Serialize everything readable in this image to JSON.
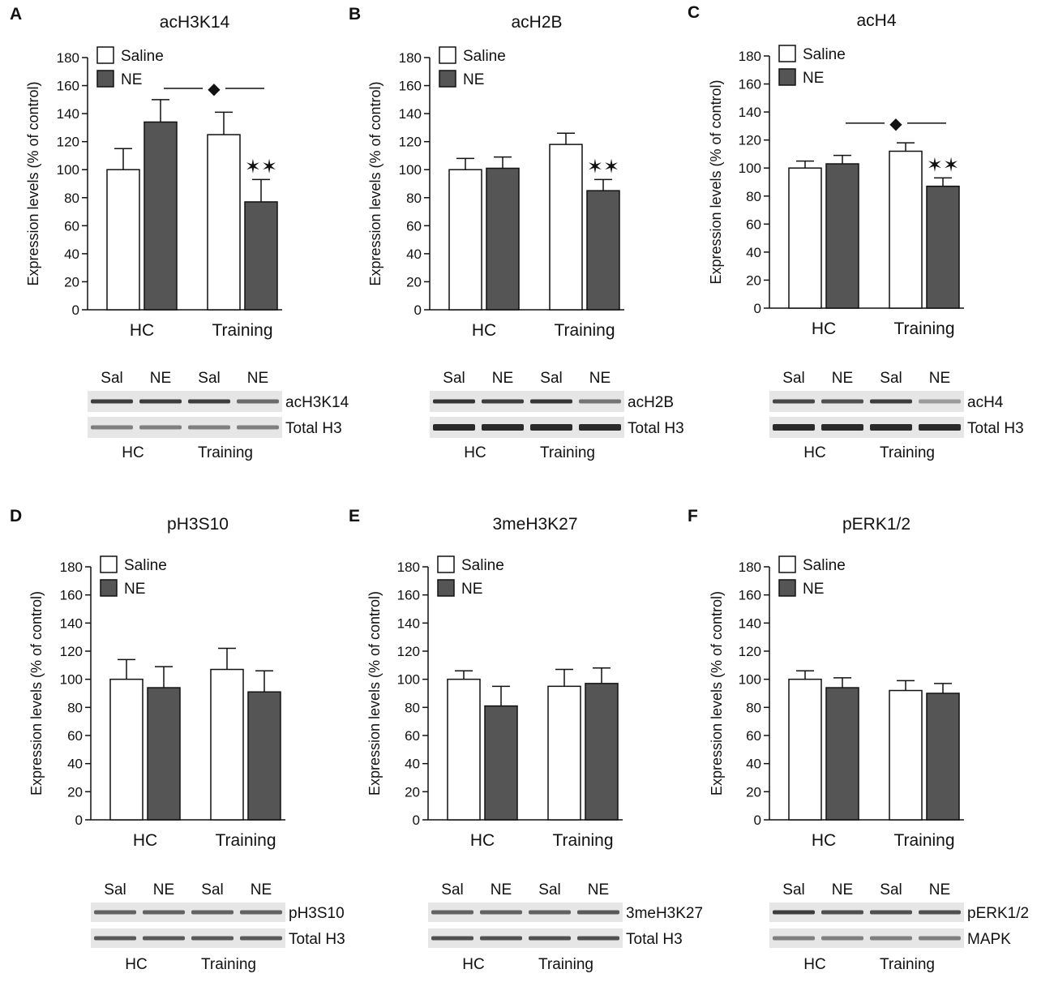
{
  "colors": {
    "saline": "#ffffff",
    "ne": "#555555",
    "axis": "#111111",
    "band_bg": "#e6e6e6",
    "band_dark": "#2a2a2a"
  },
  "chart_data": [
    {
      "panel": "A",
      "title": "acH3K14",
      "type": "bar",
      "ylabel": "Expression levels (% of control)",
      "ylim": [
        0,
        180
      ],
      "yticks": [
        0,
        20,
        40,
        60,
        80,
        100,
        120,
        140,
        160,
        180
      ],
      "categories": [
        "HC",
        "Training"
      ],
      "series": [
        {
          "name": "Saline",
          "values": [
            100,
            125
          ],
          "errors": [
            15,
            16
          ]
        },
        {
          "name": "NE",
          "values": [
            134,
            77
          ],
          "errors": [
            16,
            16
          ]
        }
      ],
      "legend": [
        "Saline",
        "NE"
      ],
      "annotations": {
        "diamond": "◆",
        "stars": "✶✶"
      },
      "blot": {
        "lanes": [
          "Sal",
          "NE",
          "Sal",
          "NE"
        ],
        "rows": [
          "acH3K14",
          "Total H3"
        ],
        "groups": [
          "HC",
          "Training"
        ]
      }
    },
    {
      "panel": "B",
      "title": "acH2B",
      "type": "bar",
      "ylabel": "Expression levels (% of control)",
      "ylim": [
        0,
        180
      ],
      "yticks": [
        0,
        20,
        40,
        60,
        80,
        100,
        120,
        140,
        160,
        180
      ],
      "categories": [
        "HC",
        "Training"
      ],
      "series": [
        {
          "name": "Saline",
          "values": [
            100,
            118
          ],
          "errors": [
            8,
            8
          ]
        },
        {
          "name": "NE",
          "values": [
            101,
            85
          ],
          "errors": [
            8,
            8
          ]
        }
      ],
      "legend": [
        "Saline",
        "NE"
      ],
      "annotations": {
        "stars": "✶✶"
      },
      "blot": {
        "lanes": [
          "Sal",
          "NE",
          "Sal",
          "NE"
        ],
        "rows": [
          "acH2B",
          "Total H3"
        ],
        "groups": [
          "HC",
          "Training"
        ]
      }
    },
    {
      "panel": "C",
      "title": "acH4",
      "type": "bar",
      "ylabel": "Expression levels (% of control)",
      "ylim": [
        0,
        180
      ],
      "yticks": [
        0,
        20,
        40,
        60,
        80,
        100,
        120,
        140,
        160,
        180
      ],
      "categories": [
        "HC",
        "Training"
      ],
      "series": [
        {
          "name": "Saline",
          "values": [
            100,
            112
          ],
          "errors": [
            5,
            6
          ]
        },
        {
          "name": "NE",
          "values": [
            103,
            87
          ],
          "errors": [
            6,
            6
          ]
        }
      ],
      "legend": [
        "Saline",
        "NE"
      ],
      "annotations": {
        "diamond": "◆",
        "stars": "✶✶"
      },
      "blot": {
        "lanes": [
          "Sal",
          "NE",
          "Sal",
          "NE"
        ],
        "rows": [
          "acH4",
          "Total H3"
        ],
        "groups": [
          "HC",
          "Training"
        ]
      }
    },
    {
      "panel": "D",
      "title": "pH3S10",
      "type": "bar",
      "ylabel": "Expression levels (% of control)",
      "ylim": [
        0,
        180
      ],
      "yticks": [
        0,
        20,
        40,
        60,
        80,
        100,
        120,
        140,
        160,
        180
      ],
      "categories": [
        "HC",
        "Training"
      ],
      "series": [
        {
          "name": "Saline",
          "values": [
            100,
            107
          ],
          "errors": [
            14,
            15
          ]
        },
        {
          "name": "NE",
          "values": [
            94,
            91
          ],
          "errors": [
            15,
            15
          ]
        }
      ],
      "legend": [
        "Saline",
        "NE"
      ],
      "annotations": {},
      "blot": {
        "lanes": [
          "Sal",
          "NE",
          "Sal",
          "NE"
        ],
        "rows": [
          "pH3S10",
          "Total H3"
        ],
        "groups": [
          "HC",
          "Training"
        ]
      }
    },
    {
      "panel": "E",
      "title": "3meH3K27",
      "type": "bar",
      "ylabel": "Expression levels (% of control)",
      "ylim": [
        0,
        180
      ],
      "yticks": [
        0,
        20,
        40,
        60,
        80,
        100,
        120,
        140,
        160,
        180
      ],
      "categories": [
        "HC",
        "Training"
      ],
      "series": [
        {
          "name": "Saline",
          "values": [
            100,
            95
          ],
          "errors": [
            6,
            12
          ]
        },
        {
          "name": "NE",
          "values": [
            81,
            97
          ],
          "errors": [
            14,
            11
          ]
        }
      ],
      "legend": [
        "Saline",
        "NE"
      ],
      "annotations": {},
      "blot": {
        "lanes": [
          "Sal",
          "NE",
          "Sal",
          "NE"
        ],
        "rows": [
          "3meH3K27",
          "Total H3"
        ],
        "groups": [
          "HC",
          "Training"
        ]
      }
    },
    {
      "panel": "F",
      "title": "pERK1/2",
      "type": "bar",
      "ylabel": "Expression levels (% of control)",
      "ylim": [
        0,
        180
      ],
      "yticks": [
        0,
        20,
        40,
        60,
        80,
        100,
        120,
        140,
        160,
        180
      ],
      "categories": [
        "HC",
        "Training"
      ],
      "series": [
        {
          "name": "Saline",
          "values": [
            100,
            92
          ],
          "errors": [
            6,
            7
          ]
        },
        {
          "name": "NE",
          "values": [
            94,
            90
          ],
          "errors": [
            7,
            7
          ]
        }
      ],
      "legend": [
        "Saline",
        "NE"
      ],
      "annotations": {},
      "blot": {
        "lanes": [
          "Sal",
          "NE",
          "Sal",
          "NE"
        ],
        "rows": [
          "pERK1/2",
          "MAPK"
        ],
        "groups": [
          "HC",
          "Training"
        ]
      }
    }
  ]
}
